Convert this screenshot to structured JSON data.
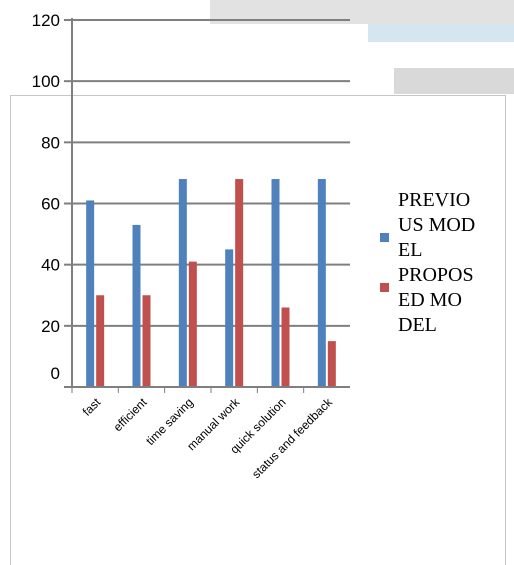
{
  "chart_data": {
    "type": "bar",
    "title": "",
    "xlabel": "",
    "ylabel": "",
    "categories": [
      "fast",
      "efficient",
      "time saving",
      "manual work",
      "quick solution",
      "status and feedback"
    ],
    "series": [
      {
        "name": "PREVIOUS MODEL",
        "values": [
          61,
          53,
          68,
          45,
          68,
          68
        ]
      },
      {
        "name": "PROPOSED MODEL",
        "values": [
          30,
          30,
          41,
          68,
          26,
          15
        ]
      }
    ],
    "yticks": [
      0,
      20,
      40,
      60,
      80,
      100,
      120
    ],
    "ylim": [
      0,
      120
    ],
    "grid": true,
    "legend_position": "right"
  },
  "colors": {
    "series": [
      "#4f81bd",
      "#c0504d"
    ],
    "axis": "#7f7f7f",
    "grid": "#7f7f7f"
  }
}
